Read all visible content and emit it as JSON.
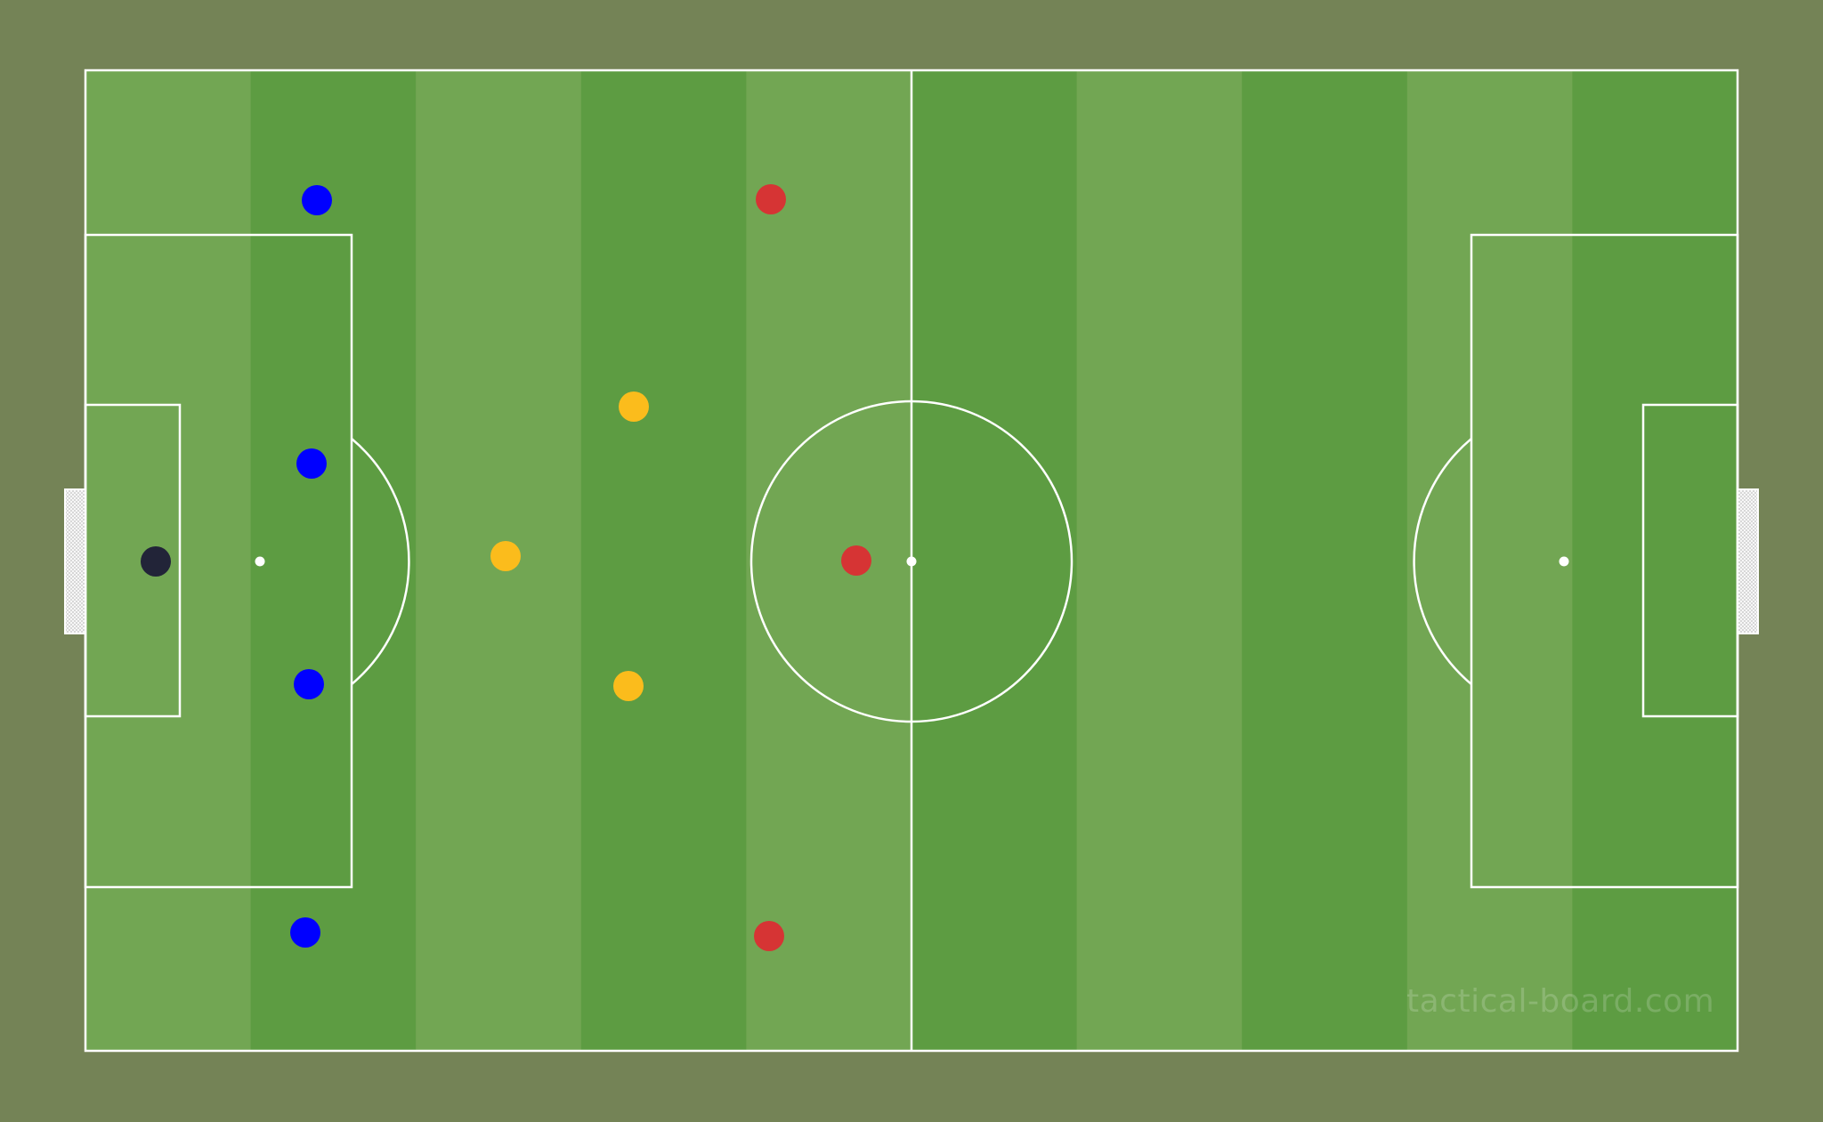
{
  "board": {
    "watermark": "tactical-board.com",
    "colors": {
      "background": "#748356",
      "stripe_light": "#72a653",
      "stripe_dark": "#5d9c42",
      "lines": "#ffffff",
      "goal_net": "#e8e8e8"
    }
  },
  "players": [
    {
      "team": "goalkeeper",
      "color": "#222438"
    },
    {
      "team": "blue",
      "color": "#0000ff"
    },
    {
      "team": "blue",
      "color": "#0000ff"
    },
    {
      "team": "blue",
      "color": "#0000ff"
    },
    {
      "team": "blue",
      "color": "#0000ff"
    },
    {
      "team": "yellow",
      "color": "#fbbc1c"
    },
    {
      "team": "yellow",
      "color": "#fbbc1c"
    },
    {
      "team": "yellow",
      "color": "#fbbc1c"
    },
    {
      "team": "red",
      "color": "#d63434"
    },
    {
      "team": "red",
      "color": "#d63434"
    },
    {
      "team": "red",
      "color": "#d63434"
    }
  ]
}
